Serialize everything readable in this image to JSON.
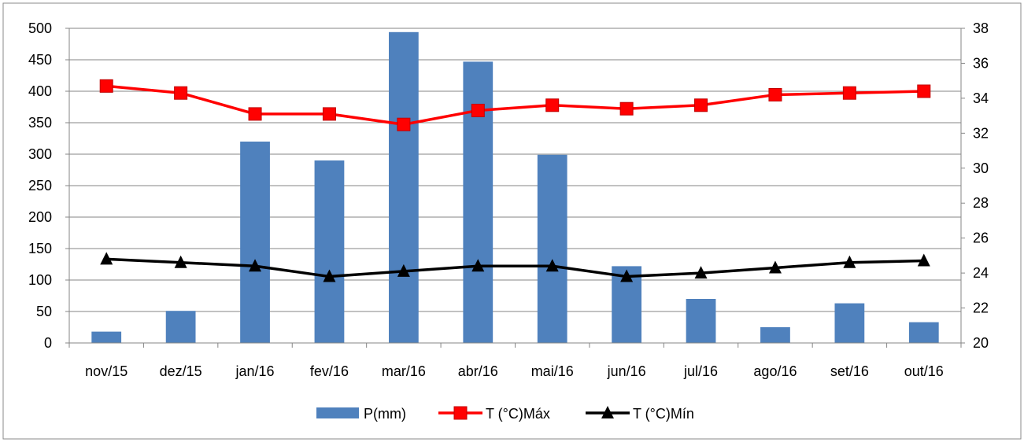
{
  "chart_data": {
    "type": "bar",
    "categories": [
      "nov/15",
      "dez/15",
      "jan/16",
      "fev/16",
      "mar/16",
      "abr/16",
      "mai/16",
      "jun/16",
      "jul/16",
      "ago/16",
      "set/16",
      "out/16"
    ],
    "series": [
      {
        "name": "P(mm)",
        "type": "bar",
        "axis": "left",
        "color": "#4F81BD",
        "values": [
          18,
          51,
          320,
          290,
          494,
          447,
          299,
          122,
          70,
          25,
          63,
          33
        ]
      },
      {
        "name": "T (°C)Máx",
        "type": "line",
        "axis": "right",
        "color": "#FF0000",
        "marker": "square",
        "values": [
          34.7,
          34.3,
          33.1,
          33.1,
          32.5,
          33.3,
          33.6,
          33.4,
          33.6,
          34.2,
          34.3,
          34.4
        ]
      },
      {
        "name": "T (°C)Mín",
        "type": "line",
        "axis": "right",
        "color": "#000000",
        "marker": "triangle",
        "values": [
          24.8,
          24.6,
          24.4,
          23.8,
          24.1,
          24.4,
          24.4,
          23.8,
          24.0,
          24.3,
          24.6,
          24.7
        ]
      }
    ],
    "ylim_left": [
      0,
      500
    ],
    "yticks_left": [
      0,
      50,
      100,
      150,
      200,
      250,
      300,
      350,
      400,
      450,
      500
    ],
    "ylim_right": [
      20,
      38
    ],
    "yticks_right": [
      20,
      22,
      24,
      26,
      28,
      30,
      32,
      34,
      36,
      38
    ],
    "grid": true,
    "legend_position": "bottom"
  }
}
